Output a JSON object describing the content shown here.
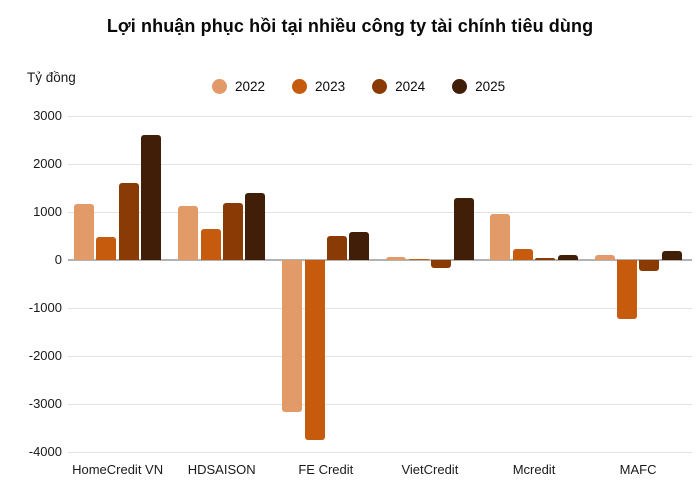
{
  "chart_data": {
    "type": "bar",
    "title": "Lợi nhuận phục hồi tại nhiều công ty tài chính tiêu dùng",
    "ylabel": "Tỷ đồng",
    "xlabel": "",
    "categories": [
      "HomeCredit VN",
      "HDSAISON",
      "FE Credit",
      "VietCredit",
      "Mcredit",
      "MAFC"
    ],
    "series": [
      {
        "name": "2022",
        "color": "#E29A68",
        "values": [
          1170,
          1130,
          -3160,
          60,
          950,
          100
        ]
      },
      {
        "name": "2023",
        "color": "#C65B0D",
        "values": [
          470,
          640,
          -3750,
          20,
          230,
          -1220
        ]
      },
      {
        "name": "2024",
        "color": "#8A3A05",
        "values": [
          1610,
          1190,
          490,
          -160,
          40,
          -220
        ]
      },
      {
        "name": "2025",
        "color": "#401E08",
        "values": [
          2600,
          1390,
          590,
          1290,
          100,
          190
        ]
      }
    ],
    "ylim": [
      -4000,
      3000
    ],
    "ytick_step": 1000,
    "yticks": [
      3000,
      2000,
      1000,
      0,
      -1000,
      -2000,
      -3000,
      -4000
    ],
    "grid": true,
    "legend_position": "top",
    "grid_color": "#e3e3e3",
    "zero_line_color": "#b3b3b3"
  }
}
